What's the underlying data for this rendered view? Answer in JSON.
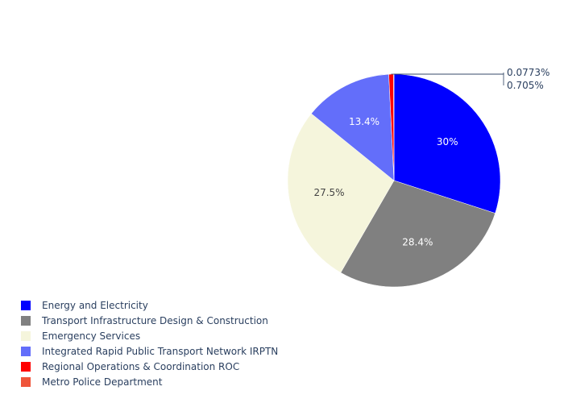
{
  "chart_data": {
    "type": "pie",
    "title": "",
    "series": [
      {
        "labels": [
          "Energy and Electricity",
          "Transport Infrastructure Design & Construction",
          "Emergency Services",
          "Integrated Rapid Public Transport Network IRPTN",
          "Regional Operations & Coordination ROC",
          "Metro Police Department"
        ],
        "values": [
          30,
          28.4,
          27.5,
          13.4,
          0.705,
          0.0773
        ],
        "value_labels": [
          "30%",
          "28.4%",
          "27.5%",
          "13.4%",
          "0.705%",
          "0.0773%"
        ],
        "colors": [
          "#0000ff",
          "#808080",
          "#f5f5dc",
          "#636efa",
          "#ff0000",
          "#ef553b"
        ]
      }
    ],
    "legend_position": "bottom-left",
    "slice_order": [
      3,
      0,
      1,
      2,
      5,
      4
    ]
  }
}
